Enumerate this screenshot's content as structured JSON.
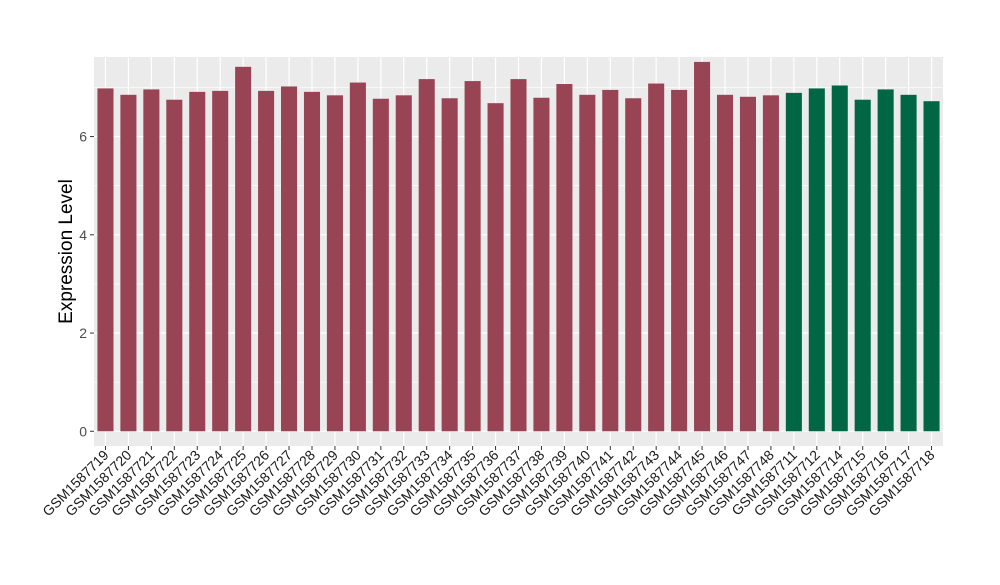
{
  "chart_data": {
    "type": "bar",
    "title": "",
    "xlabel": "",
    "ylabel": "Expression Level",
    "ylim": [
      -0.3,
      7.62
    ],
    "yticks": [
      0,
      2,
      4,
      6
    ],
    "grid": true,
    "categories": [
      "GSM1587719",
      "GSM1587720",
      "GSM1587721",
      "GSM1587722",
      "GSM1587723",
      "GSM1587724",
      "GSM1587725",
      "GSM1587726",
      "GSM1587727",
      "GSM1587728",
      "GSM1587729",
      "GSM1587730",
      "GSM1587731",
      "GSM1587732",
      "GSM1587733",
      "GSM1587734",
      "GSM1587735",
      "GSM1587736",
      "GSM1587737",
      "GSM1587738",
      "GSM1587739",
      "GSM1587740",
      "GSM1587741",
      "GSM1587742",
      "GSM1587743",
      "GSM1587744",
      "GSM1587745",
      "GSM1587746",
      "GSM1587747",
      "GSM1587748",
      "GSM1587711",
      "GSM1587712",
      "GSM1587714",
      "GSM1587715",
      "GSM1587716",
      "GSM1587717",
      "GSM1587718"
    ],
    "values": [
      6.98,
      6.85,
      6.96,
      6.75,
      6.91,
      6.93,
      7.42,
      6.93,
      7.02,
      6.91,
      6.84,
      7.1,
      6.77,
      6.84,
      7.17,
      6.78,
      7.13,
      6.68,
      7.17,
      6.79,
      7.07,
      6.85,
      6.95,
      6.78,
      7.08,
      6.95,
      7.52,
      6.85,
      6.81,
      6.84,
      6.89,
      6.98,
      7.04,
      6.75,
      6.96,
      6.85,
      6.72
    ],
    "bar_colors": [
      "#994455",
      "#994455",
      "#994455",
      "#994455",
      "#994455",
      "#994455",
      "#994455",
      "#994455",
      "#994455",
      "#994455",
      "#994455",
      "#994455",
      "#994455",
      "#994455",
      "#994455",
      "#994455",
      "#994455",
      "#994455",
      "#994455",
      "#994455",
      "#994455",
      "#994455",
      "#994455",
      "#994455",
      "#994455",
      "#994455",
      "#994455",
      "#994455",
      "#994455",
      "#994455",
      "#006644",
      "#006644",
      "#006644",
      "#006644",
      "#006644",
      "#006644",
      "#006644"
    ],
    "panel_color": "#ebebeb",
    "grid_color": "#ffffff"
  }
}
